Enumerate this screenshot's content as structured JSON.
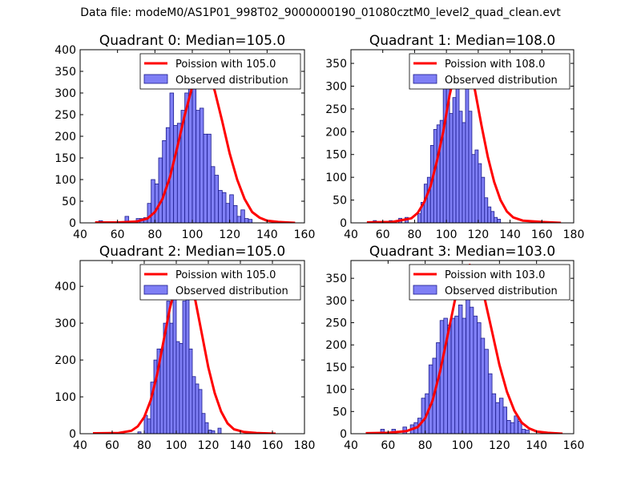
{
  "figure": {
    "suptitle": "Data file: modeM0/AS1P01_998T02_9000000190_01080cztM0_level2_quad_clean.evt"
  },
  "colors": {
    "bar_fill": "#7f7ff5",
    "bar_edge": "#1a1a8c",
    "poisson_line": "#ff0000"
  },
  "chart_data": [
    {
      "type": "bar",
      "title": "Quadrant 0: Median=105.0",
      "legend": [
        "Poission with 105.0",
        "Observed distribution"
      ],
      "legend_position": "top-right",
      "xlim": [
        40,
        160
      ],
      "ylim": [
        0,
        400
      ],
      "xticks": [
        40,
        60,
        80,
        100,
        120,
        140,
        160
      ],
      "yticks": [
        0,
        50,
        100,
        150,
        200,
        250,
        300,
        350,
        400
      ],
      "bin_start": 72,
      "bin_width": 2,
      "values": [
        10,
        12,
        45,
        100,
        90,
        150,
        190,
        220,
        300,
        225,
        230,
        260,
        300,
        385,
        325,
        260,
        265,
        205,
        205,
        130,
        110,
        75,
        70,
        45,
        65,
        40,
        15,
        30,
        10,
        8
      ],
      "outliers": [
        {
          "x": 50,
          "y": 5
        },
        {
          "x": 64,
          "y": 15
        },
        {
          "x": 70,
          "y": 10
        }
      ],
      "poisson_x": [
        48,
        60,
        70,
        76,
        80,
        84,
        88,
        92,
        96,
        100,
        104,
        108,
        112,
        116,
        120,
        124,
        128,
        132,
        136,
        140,
        146,
        155
      ],
      "poisson_y": [
        1,
        1,
        3,
        10,
        25,
        55,
        105,
        175,
        250,
        315,
        365,
        355,
        305,
        235,
        160,
        100,
        55,
        25,
        12,
        5,
        2,
        0
      ]
    },
    {
      "type": "bar",
      "title": "Quadrant 1: Median=108.0",
      "legend": [
        "Poission with 108.0",
        "Observed distribution"
      ],
      "legend_position": "top-right",
      "xlim": [
        40,
        180
      ],
      "ylim": [
        0,
        380
      ],
      "xticks": [
        40,
        60,
        80,
        100,
        120,
        140,
        160,
        180
      ],
      "yticks": [
        0,
        50,
        100,
        150,
        200,
        250,
        300,
        350
      ],
      "bin_start": 82,
      "bin_width": 2,
      "values": [
        20,
        45,
        85,
        100,
        170,
        205,
        215,
        225,
        300,
        345,
        240,
        275,
        300,
        245,
        220,
        300,
        245,
        150,
        160,
        130,
        100,
        55,
        35,
        25,
        12,
        8
      ],
      "outliers": [
        {
          "x": 54,
          "y": 5
        },
        {
          "x": 64,
          "y": 5
        },
        {
          "x": 70,
          "y": 10
        },
        {
          "x": 74,
          "y": 12
        }
      ],
      "poisson_x": [
        50,
        66,
        78,
        82,
        86,
        90,
        94,
        98,
        102,
        106,
        110,
        114,
        118,
        122,
        126,
        130,
        134,
        138,
        142,
        148,
        160,
        172
      ],
      "poisson_y": [
        1,
        2,
        10,
        22,
        45,
        80,
        135,
        200,
        280,
        340,
        360,
        350,
        290,
        215,
        145,
        90,
        50,
        25,
        12,
        5,
        2,
        0
      ]
    },
    {
      "type": "bar",
      "title": "Quadrant 2: Median=105.0",
      "legend": [
        "Poission with 105.0",
        "Observed distribution"
      ],
      "legend_position": "top-right",
      "xlim": [
        40,
        180
      ],
      "ylim": [
        0,
        470
      ],
      "xticks": [
        40,
        60,
        80,
        100,
        120,
        140,
        160,
        180
      ],
      "yticks": [
        0,
        100,
        200,
        300,
        400
      ],
      "bin_start": 80,
      "bin_width": 2,
      "values": [
        50,
        40,
        140,
        200,
        230,
        230,
        300,
        360,
        300,
        380,
        250,
        245,
        360,
        390,
        230,
        155,
        135,
        120,
        55,
        30,
        10,
        8
      ],
      "outliers": [
        {
          "x": 76,
          "y": 5
        },
        {
          "x": 126,
          "y": 15
        }
      ],
      "poisson_x": [
        48,
        64,
        72,
        76,
        80,
        84,
        88,
        92,
        96,
        100,
        104,
        108,
        112,
        116,
        120,
        124,
        128,
        132,
        136,
        142,
        150,
        162
      ],
      "poisson_y": [
        1,
        2,
        8,
        20,
        45,
        90,
        160,
        250,
        340,
        410,
        440,
        420,
        360,
        270,
        180,
        110,
        60,
        28,
        12,
        5,
        2,
        0
      ]
    },
    {
      "type": "bar",
      "title": "Quadrant 3: Median=103.0",
      "legend": [
        "Poission with 103.0",
        "Observed distribution"
      ],
      "legend_position": "top-right",
      "xlim": [
        40,
        160
      ],
      "ylim": [
        0,
        390
      ],
      "xticks": [
        40,
        60,
        80,
        100,
        120,
        140,
        160
      ],
      "yticks": [
        0,
        50,
        100,
        150,
        200,
        250,
        300,
        350
      ],
      "bin_start": 72,
      "bin_width": 2,
      "values": [
        20,
        25,
        35,
        80,
        90,
        155,
        170,
        205,
        255,
        260,
        245,
        260,
        265,
        290,
        260,
        310,
        285,
        265,
        250,
        215,
        190,
        135,
        90,
        70,
        80,
        60,
        30,
        25,
        40,
        28,
        10,
        8
      ],
      "outliers": [
        {
          "x": 56,
          "y": 10
        },
        {
          "x": 62,
          "y": 10
        },
        {
          "x": 68,
          "y": 15
        }
      ],
      "poisson_x": [
        48,
        60,
        70,
        76,
        80,
        84,
        88,
        92,
        96,
        100,
        104,
        108,
        112,
        116,
        120,
        124,
        128,
        132,
        136,
        140,
        146,
        154
      ],
      "poisson_y": [
        1,
        2,
        6,
        15,
        35,
        75,
        140,
        220,
        300,
        360,
        380,
        360,
        305,
        230,
        155,
        95,
        52,
        25,
        12,
        5,
        2,
        0
      ]
    }
  ]
}
